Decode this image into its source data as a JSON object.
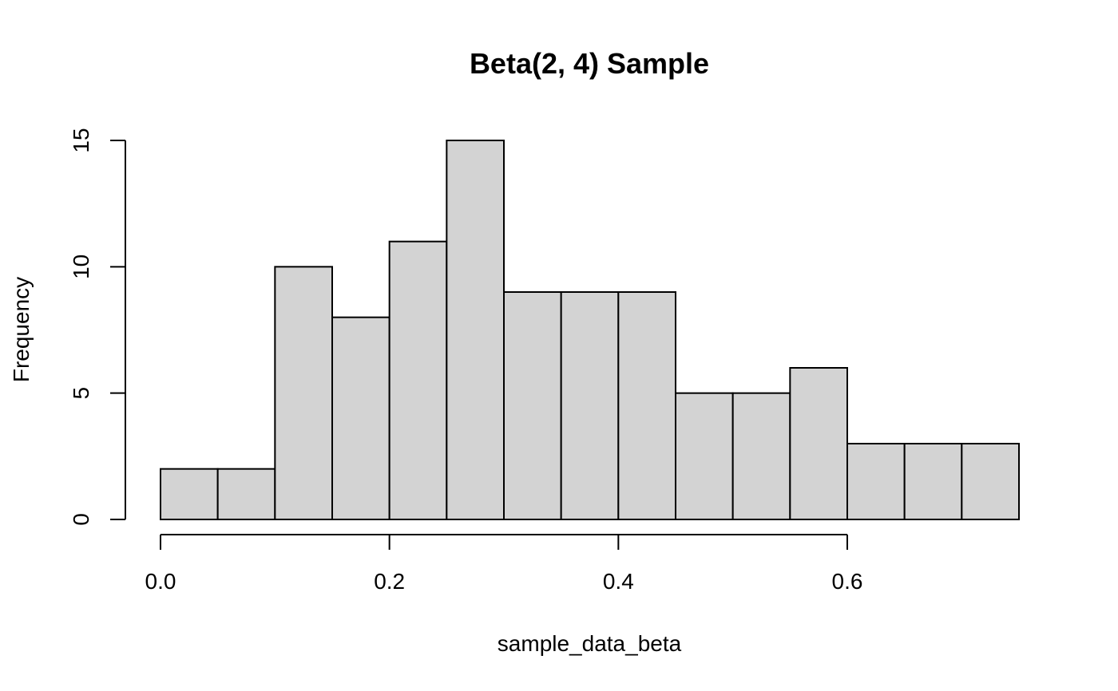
{
  "chart_data": {
    "type": "bar",
    "title": "Beta(2, 4) Sample",
    "xlabel": "sample_data_beta",
    "ylabel": "Frequency",
    "bin_edges": [
      0.0,
      0.05,
      0.1,
      0.15,
      0.2,
      0.25,
      0.3,
      0.35,
      0.4,
      0.45,
      0.5,
      0.55,
      0.6,
      0.65,
      0.7,
      0.75
    ],
    "values": [
      2,
      2,
      10,
      8,
      11,
      15,
      9,
      9,
      9,
      5,
      5,
      6,
      3,
      3,
      3
    ],
    "xlim": [
      0.0,
      0.75
    ],
    "ylim": [
      0,
      15
    ],
    "x_ticks": [
      0.0,
      0.2,
      0.4,
      0.6
    ],
    "x_tick_labels": [
      "0.0",
      "0.2",
      "0.4",
      "0.6"
    ],
    "y_ticks": [
      0,
      5,
      10,
      15
    ],
    "y_tick_labels": [
      "0",
      "5",
      "10",
      "15"
    ],
    "grid": false,
    "bar_color": "#d3d3d3"
  }
}
